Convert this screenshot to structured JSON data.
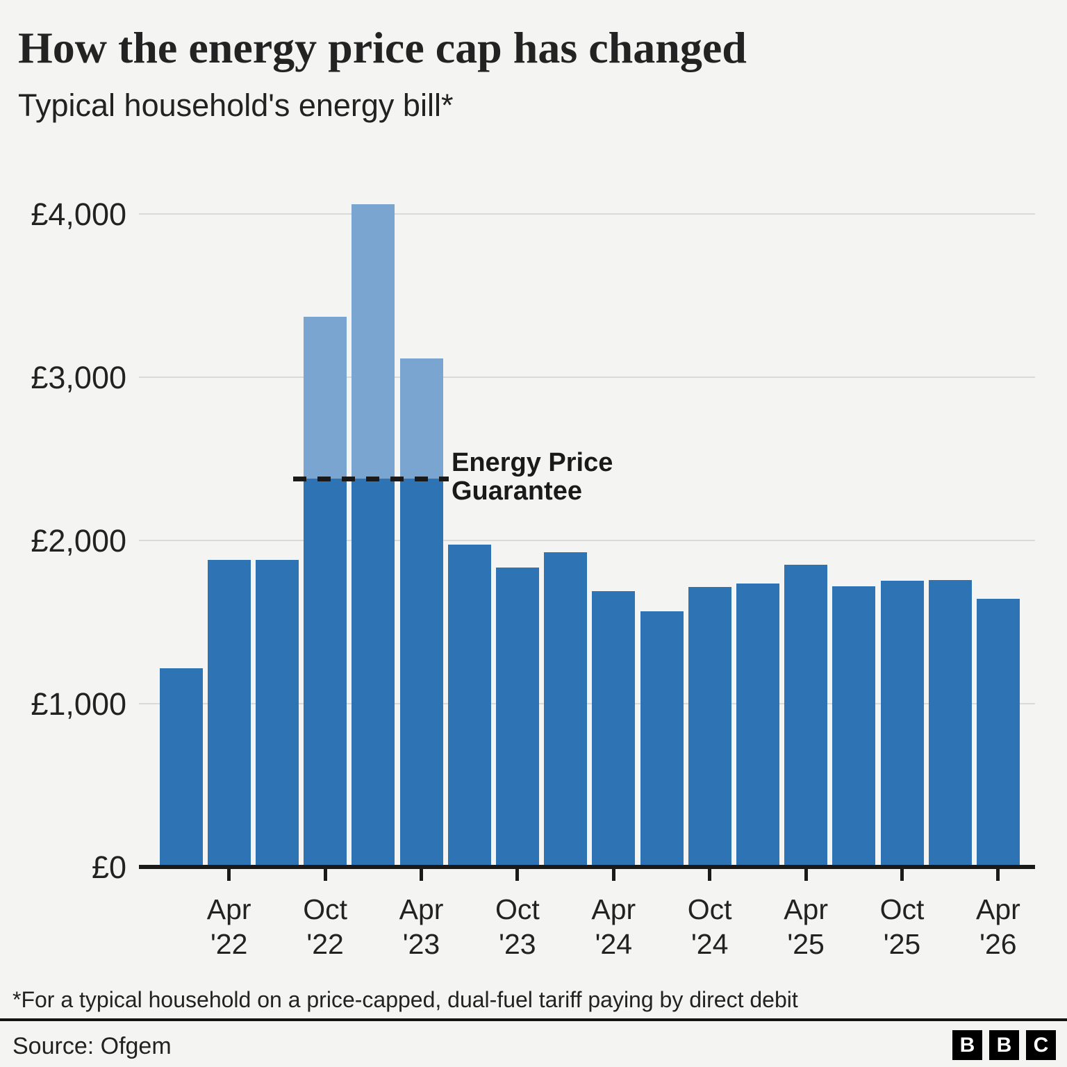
{
  "header": {
    "title": "How the energy price cap has changed",
    "subtitle": "Typical household's energy bill*"
  },
  "chart_data": {
    "type": "bar",
    "title": "How the energy price cap has changed",
    "subtitle": "Typical household's energy bill*",
    "currency": "£",
    "grid": "horizontal",
    "legend_position": "none",
    "ylim": [
      0,
      4300
    ],
    "y_ticks": [
      {
        "value": 0,
        "label": "£0"
      },
      {
        "value": 1000,
        "label": "£1,000"
      },
      {
        "value": 2000,
        "label": "£2,000"
      },
      {
        "value": 3000,
        "label": "£3,000"
      },
      {
        "value": 4000,
        "label": "£4,000"
      }
    ],
    "categories": [
      "Jan '22",
      "Apr '22",
      "Jul '22",
      "Oct '22",
      "Jan '23",
      "Apr '23",
      "Jul '23",
      "Oct '23",
      "Jan '24",
      "Apr '24",
      "Jul '24",
      "Oct '24",
      "Jan '25",
      "Apr '25",
      "Jul '25",
      "Oct '25",
      "Jan '26",
      "Apr '26"
    ],
    "values": [
      1216,
      1880,
      1880,
      3370,
      4059,
      3116,
      1976,
      1834,
      1928,
      1690,
      1568,
      1717,
      1738,
      1849,
      1720,
      1755,
      1758,
      1644
    ],
    "price_guarantee": {
      "value": 2380,
      "label_line1": "Energy Price",
      "label_line2": "Guarantee",
      "applies_to": [
        "Oct '22",
        "Jan '23",
        "Apr '23"
      ]
    },
    "x_tick_labels": [
      {
        "line1": "Apr",
        "line2": "'22"
      },
      {
        "line1": "Oct",
        "line2": "'22"
      },
      {
        "line1": "Apr",
        "line2": "'23"
      },
      {
        "line1": "Oct",
        "line2": "'23"
      },
      {
        "line1": "Apr",
        "line2": "'24"
      },
      {
        "line1": "Oct",
        "line2": "'24"
      },
      {
        "line1": "Apr",
        "line2": "'25"
      },
      {
        "line1": "Oct",
        "line2": "'25"
      },
      {
        "line1": "Apr",
        "line2": "'26"
      }
    ]
  },
  "colors": {
    "bar": "#2E74B4",
    "bar_above_guarantee": "#7AA5D0",
    "guarantee_line": "#1A1A1A",
    "gridline": "#D9D9D9",
    "axis": "#1A1A1A",
    "background": "#F4F4F3",
    "text": "#222222"
  },
  "footnote": "*For a typical household on a price-capped, dual-fuel tariff paying by direct debit",
  "source": {
    "label": "Source: Ofgem"
  },
  "logo": {
    "blocks": [
      "B",
      "B",
      "C"
    ]
  }
}
